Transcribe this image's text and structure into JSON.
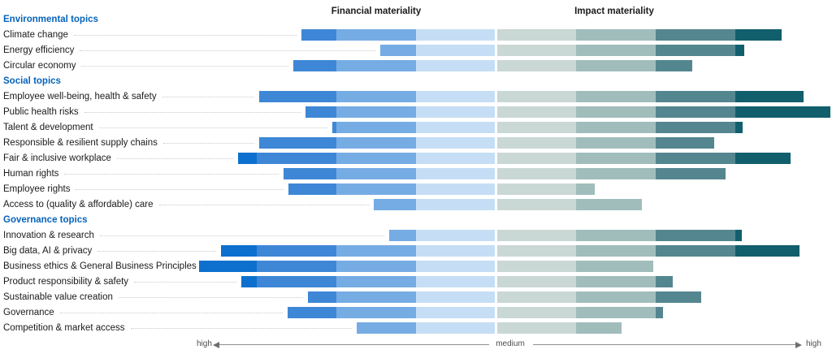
{
  "headers": {
    "financial": "Financial materiality",
    "impact": "Impact materiality"
  },
  "axis": {
    "left_label": "high",
    "center_label": "medium",
    "right_label": "high"
  },
  "colors": {
    "group_header_blue": "#0663ba",
    "label_text": "#1a1a1a",
    "axis_gray": "#4d4d4d",
    "leader_dot": "#c9c9c9"
  },
  "chart_data": {
    "type": "bar",
    "variant": "diverging-double-materiality",
    "title": "",
    "xlabel_left": "Financial materiality",
    "xlabel_right": "Impact materiality",
    "scale_note": "values are fractions from medium (0, chart center) to high (1, axis end); bars shade darker in fixed bands away from center",
    "band_fractions": [
      0.2425,
      0.4875,
      0.7325
    ],
    "financial_band_colors_from_center": [
      "#c5def5",
      "#76ace4",
      "#3e87d6",
      "#0d70ce"
    ],
    "impact_band_colors_from_center": [
      "#cad8d5",
      "#a0bdbc",
      "#54868f",
      "#115f6d"
    ],
    "legend": null,
    "groups": [
      {
        "label": "Environmental topics",
        "rows": [
          {
            "label": "Climate change",
            "financial": 0.595,
            "impact": 0.875
          },
          {
            "label": "Energy efficiency",
            "financial": 0.3525,
            "impact": 0.76
          },
          {
            "label": "Circular economy",
            "financial": 0.62,
            "impact": 0.6
          }
        ]
      },
      {
        "label": "Social topics",
        "rows": [
          {
            "label": "Employee well-being, health & safety",
            "financial": 0.725,
            "impact": 0.9425
          },
          {
            "label": "Public health risks",
            "financial": 0.5825,
            "impact": 1.025
          },
          {
            "label": "Talent & development",
            "financial": 0.5,
            "impact": 0.755
          },
          {
            "label": "Responsible & resilient supply chains",
            "financial": 0.725,
            "impact": 0.6675
          },
          {
            "label": "Fair & inclusive workplace",
            "financial": 0.79,
            "impact": 0.9025
          },
          {
            "label": "Human rights",
            "financial": 0.65,
            "impact": 0.7025
          },
          {
            "label": "Employee rights",
            "financial": 0.635,
            "impact": 0.3
          },
          {
            "label": "Access to (quality & affordable) care",
            "financial": 0.3725,
            "impact": 0.445
          }
        ]
      },
      {
        "label": "Governance topics",
        "rows": [
          {
            "label": "Innovation & research",
            "financial": 0.325,
            "impact": 0.7525
          },
          {
            "label": "Big data, AI & privacy",
            "financial": 0.8425,
            "impact": 0.93
          },
          {
            "label": "Business ethics & General Business Principles",
            "financial": 0.91,
            "impact": 0.48
          },
          {
            "label": "Product responsibility & safety",
            "financial": 0.78,
            "impact": 0.54
          },
          {
            "label": "Sustainable value creation",
            "financial": 0.575,
            "impact": 0.6275
          },
          {
            "label": "Governance",
            "financial": 0.6375,
            "impact": 0.51
          },
          {
            "label": "Competition & market access",
            "financial": 0.425,
            "impact": 0.3825
          }
        ]
      }
    ]
  }
}
